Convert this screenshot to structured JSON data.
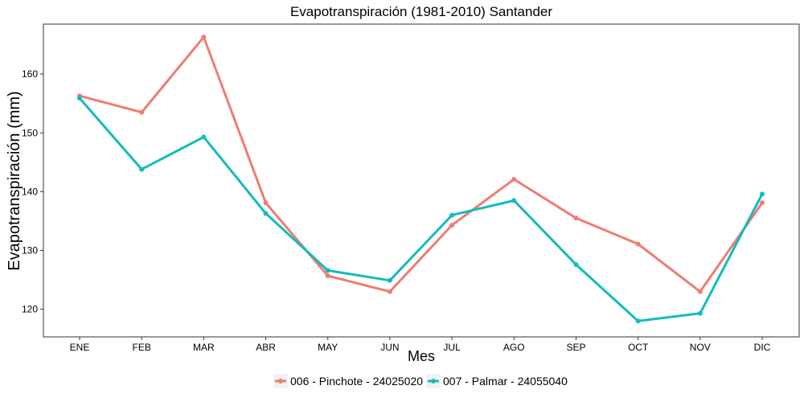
{
  "chart_data": {
    "type": "line",
    "title": "Evapotranspiración (1981-2010)  Santander",
    "xlabel": "Mes",
    "ylabel": "Evapotranspiración  (mm)",
    "categories": [
      "ENE",
      "FEB",
      "MAR",
      "ABR",
      "MAY",
      "JUN",
      "JUL",
      "AGO",
      "SEP",
      "OCT",
      "NOV",
      "DIC"
    ],
    "y_ticks": [
      120,
      130,
      140,
      150,
      160
    ],
    "ylim": [
      115.3,
      168.5
    ],
    "grid": false,
    "legend_position": "bottom",
    "series": [
      {
        "name": "006 - Pinchote - 24025020",
        "color": "#F07C73",
        "values": [
          156.3,
          153.5,
          166.3,
          138.1,
          125.7,
          123.0,
          134.3,
          142.1,
          135.5,
          131.1,
          123.0,
          138.1
        ]
      },
      {
        "name": "007 - Palmar - 24055040",
        "color": "#13BBBE",
        "values": [
          155.9,
          143.8,
          149.3,
          136.3,
          126.6,
          124.9,
          136.0,
          138.5,
          127.6,
          118.0,
          119.3,
          139.6
        ]
      }
    ]
  }
}
